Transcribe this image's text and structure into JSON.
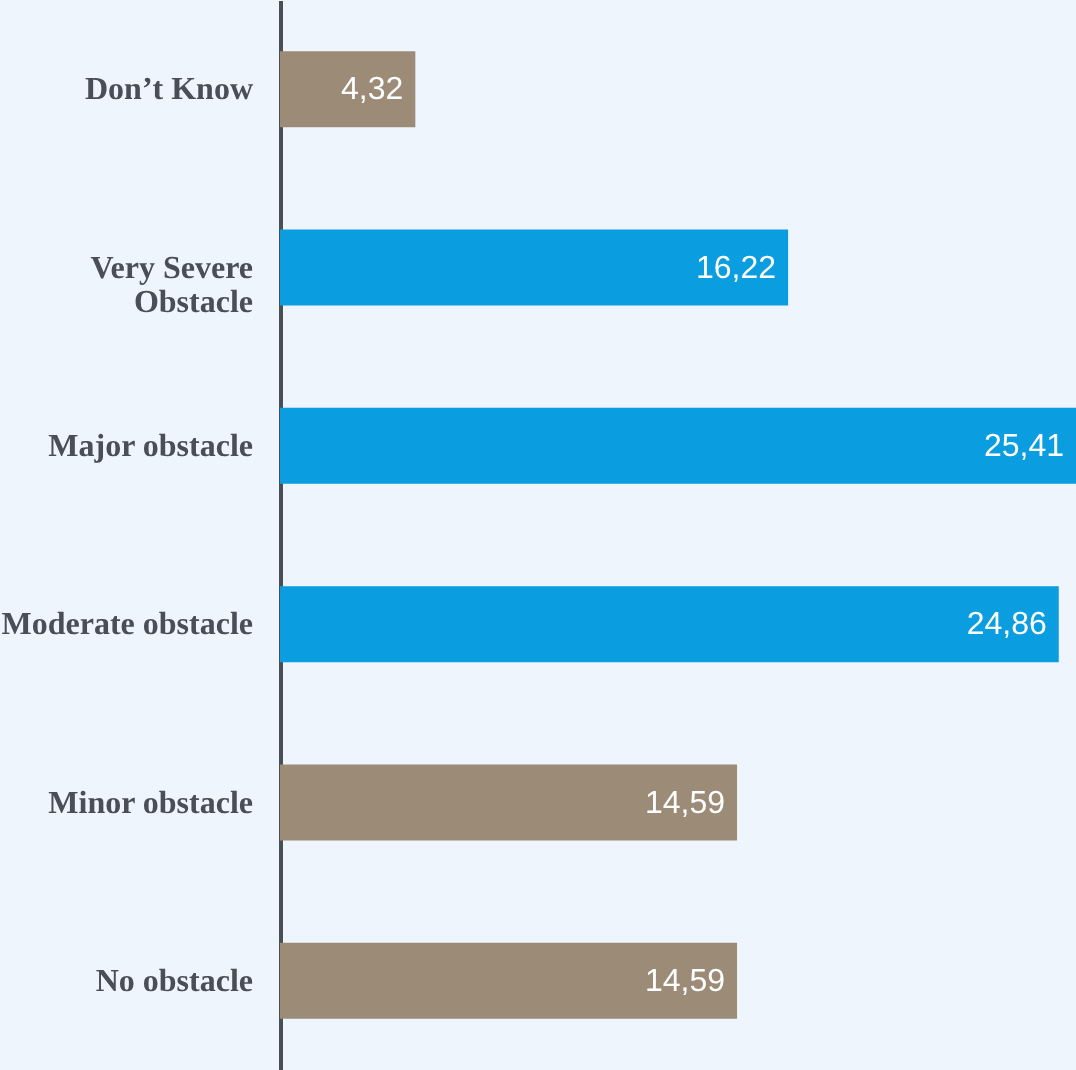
{
  "chart_data": {
    "type": "bar",
    "orientation": "horizontal",
    "categories": [
      "Don’t Know",
      "Very Severe Obstacle",
      "Major obstacle",
      "Moderate obstacle",
      "Minor obstacle",
      "No obstacle"
    ],
    "values": [
      4.32,
      16.22,
      25.41,
      24.86,
      14.59,
      14.59
    ],
    "colors": [
      "#9b8b77",
      "#0a9de0",
      "#0a9de0",
      "#0a9de0",
      "#9b8b77",
      "#9b8b77"
    ],
    "value_labels": [
      "4,32",
      "16,22",
      "25,41",
      "24,86",
      "14,59",
      "14,59"
    ]
  }
}
